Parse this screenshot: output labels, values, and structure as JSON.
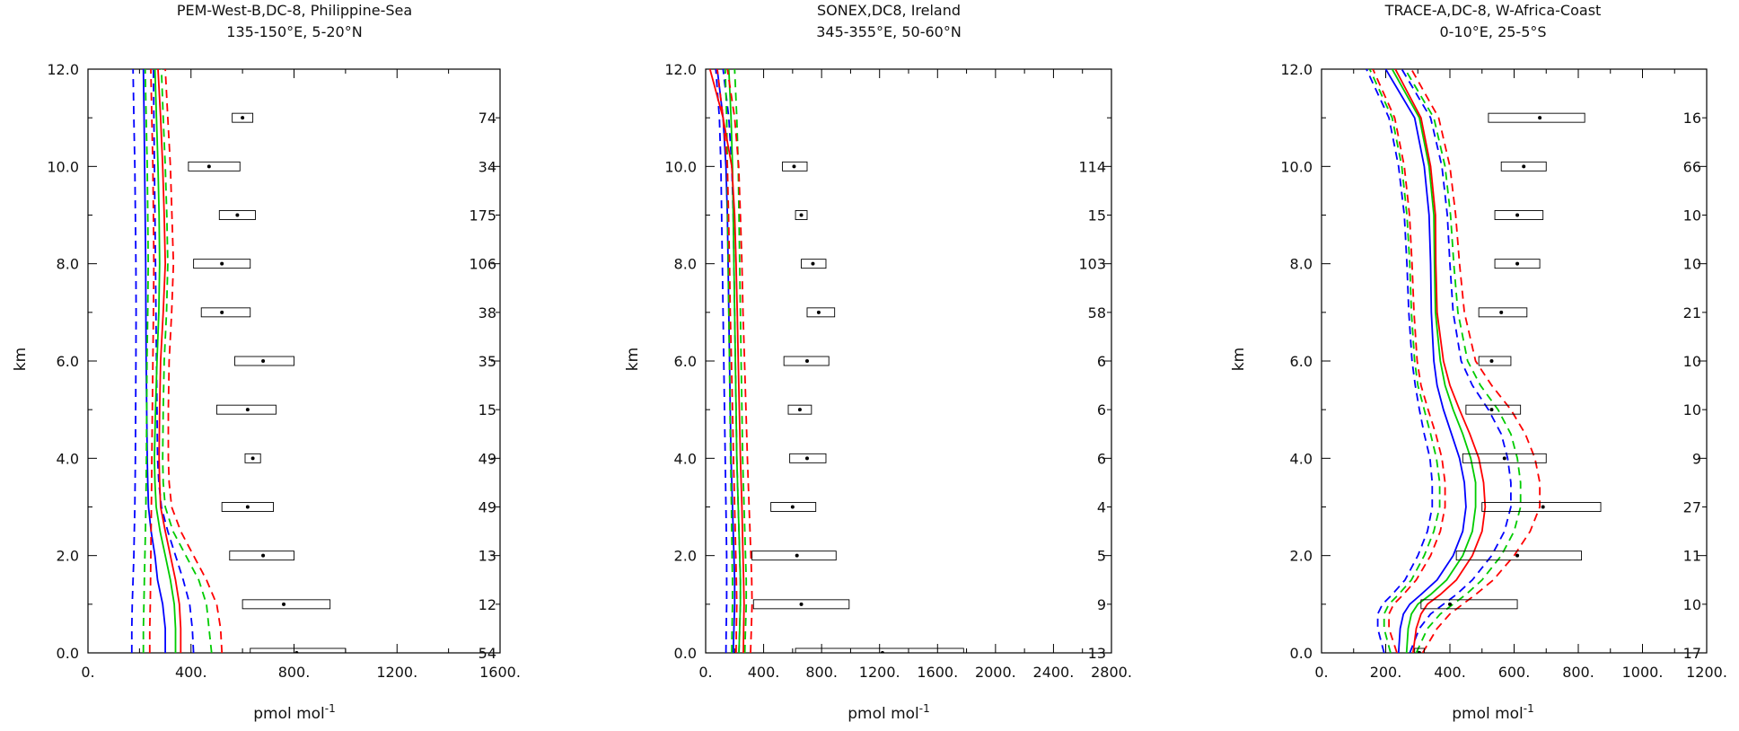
{
  "chart_data": [
    {
      "type": "line",
      "title": "PEM-West-B,DC-8, Philippine-Sea",
      "subtitle": "135-150°E, 5-20°N",
      "xlabel": "pmol mol",
      "xlabel_exp": "-1",
      "ylabel": "km",
      "xlim": [
        0,
        1600
      ],
      "ylim": [
        0,
        12
      ],
      "xticks": [
        0,
        400,
        800,
        1200,
        1600
      ],
      "xtick_labels": [
        "0.",
        "400.",
        "800.",
        "1200.",
        "1600."
      ],
      "yticks": [
        0,
        2,
        4,
        6,
        8,
        10,
        12
      ],
      "ytick_labels": [
        "0.0",
        "2.0",
        "4.0",
        "6.0",
        "8.0",
        "10.0",
        "12.0"
      ],
      "y": [
        0,
        0.5,
        1,
        1.5,
        2,
        2.5,
        3,
        3.5,
        4,
        5,
        6,
        7,
        8,
        9,
        10,
        11,
        12
      ],
      "series": [
        {
          "color": "#0000ff",
          "dash": false,
          "values": [
            300,
            300,
            290,
            270,
            260,
            245,
            235,
            232,
            230,
            228,
            226,
            225,
            224,
            222,
            220,
            218,
            215
          ]
        },
        {
          "color": "#0000ff",
          "dash": true,
          "values": [
            170,
            170,
            172,
            175,
            178,
            180,
            182,
            183,
            184,
            185,
            186,
            187,
            186,
            184,
            182,
            178,
            175
          ]
        },
        {
          "color": "#0000ff",
          "dash": true,
          "values": [
            410,
            405,
            395,
            370,
            340,
            310,
            285,
            275,
            270,
            268,
            266,
            264,
            262,
            260,
            258,
            256,
            254
          ]
        },
        {
          "color": "#00cc00",
          "dash": false,
          "values": [
            340,
            340,
            335,
            320,
            300,
            280,
            265,
            260,
            258,
            262,
            268,
            275,
            278,
            276,
            272,
            266,
            260
          ]
        },
        {
          "color": "#00cc00",
          "dash": true,
          "values": [
            215,
            215,
            217,
            219,
            221,
            223,
            225,
            226,
            227,
            228,
            229,
            232,
            234,
            232,
            230,
            226,
            222
          ]
        },
        {
          "color": "#00cc00",
          "dash": true,
          "values": [
            480,
            470,
            460,
            430,
            380,
            330,
            300,
            292,
            290,
            292,
            296,
            305,
            310,
            306,
            300,
            292,
            285
          ]
        },
        {
          "color": "#ff0000",
          "dash": false,
          "values": [
            360,
            360,
            355,
            340,
            320,
            300,
            282,
            278,
            276,
            278,
            282,
            292,
            300,
            296,
            290,
            282,
            272
          ]
        },
        {
          "color": "#ff0000",
          "dash": true,
          "values": [
            240,
            240,
            242,
            243,
            244,
            245,
            246,
            247,
            248,
            250,
            252,
            254,
            256,
            254,
            252,
            248,
            244
          ]
        },
        {
          "color": "#ff0000",
          "dash": true,
          "values": [
            520,
            515,
            500,
            460,
            410,
            360,
            325,
            315,
            312,
            312,
            315,
            325,
            332,
            326,
            320,
            310,
            300
          ]
        }
      ],
      "boxes": [
        {
          "alt": 11,
          "min": 560,
          "max": 640,
          "median": 600,
          "count": "74"
        },
        {
          "alt": 10,
          "min": 390,
          "max": 590,
          "median": 470,
          "count": "34"
        },
        {
          "alt": 9,
          "min": 510,
          "max": 650,
          "median": 580,
          "count": "175"
        },
        {
          "alt": 8,
          "min": 410,
          "max": 630,
          "median": 520,
          "count": "106"
        },
        {
          "alt": 7,
          "min": 440,
          "max": 630,
          "median": 520,
          "count": "38"
        },
        {
          "alt": 6,
          "min": 570,
          "max": 800,
          "median": 680,
          "count": "35"
        },
        {
          "alt": 5,
          "min": 500,
          "max": 730,
          "median": 620,
          "count": "15"
        },
        {
          "alt": 4,
          "min": 610,
          "max": 670,
          "median": 640,
          "count": "49"
        },
        {
          "alt": 3,
          "min": 520,
          "max": 720,
          "median": 620,
          "count": "49"
        },
        {
          "alt": 2,
          "min": 550,
          "max": 800,
          "median": 680,
          "count": "13"
        },
        {
          "alt": 1,
          "min": 600,
          "max": 940,
          "median": 760,
          "count": "12"
        },
        {
          "alt": 0,
          "min": 630,
          "max": 1000,
          "median": 810,
          "count": "54"
        }
      ]
    },
    {
      "type": "line",
      "title": "SONEX,DC8, Ireland",
      "subtitle": "345-355°E, 50-60°N",
      "xlabel": "pmol mol",
      "xlabel_exp": "-1",
      "ylabel": "km",
      "xlim": [
        0,
        2800
      ],
      "ylim": [
        0,
        12
      ],
      "xticks": [
        0,
        400,
        800,
        1200,
        1600,
        2000,
        2400,
        2800
      ],
      "xtick_labels": [
        "0.",
        "400.",
        "800.",
        "1200.",
        "1600.",
        "2000.",
        "2400.",
        "2800."
      ],
      "yticks": [
        0,
        2,
        4,
        6,
        8,
        10,
        12
      ],
      "ytick_labels": [
        "0.0",
        "2.0",
        "4.0",
        "6.0",
        "8.0",
        "10.0",
        "12.0"
      ],
      "y": [
        0,
        0.5,
        1,
        1.5,
        2,
        3,
        4,
        5,
        6,
        7,
        8,
        9,
        10,
        11,
        12
      ],
      "series": [
        {
          "color": "#0000ff",
          "dash": false,
          "values": [
            190,
            195,
            200,
            200,
            195,
            185,
            175,
            170,
            165,
            160,
            155,
            150,
            140,
            120,
            80
          ]
        },
        {
          "color": "#0000ff",
          "dash": true,
          "values": [
            140,
            142,
            145,
            145,
            145,
            140,
            135,
            130,
            125,
            120,
            115,
            110,
            105,
            95,
            70
          ]
        },
        {
          "color": "#0000ff",
          "dash": true,
          "values": [
            230,
            235,
            240,
            240,
            235,
            225,
            215,
            210,
            205,
            200,
            195,
            190,
            180,
            160,
            120
          ]
        },
        {
          "color": "#00cc00",
          "dash": false,
          "values": [
            230,
            235,
            240,
            240,
            235,
            225,
            215,
            210,
            205,
            200,
            195,
            190,
            185,
            175,
            160
          ]
        },
        {
          "color": "#00cc00",
          "dash": true,
          "values": [
            180,
            182,
            185,
            185,
            182,
            178,
            172,
            168,
            164,
            160,
            156,
            152,
            150,
            145,
            135
          ]
        },
        {
          "color": "#00cc00",
          "dash": true,
          "values": [
            270,
            275,
            280,
            280,
            275,
            265,
            255,
            250,
            245,
            240,
            235,
            230,
            225,
            215,
            200
          ]
        },
        {
          "color": "#ff0000",
          "dash": false,
          "values": [
            260,
            262,
            265,
            262,
            258,
            250,
            240,
            232,
            225,
            218,
            210,
            200,
            180,
            120,
            30
          ]
        },
        {
          "color": "#ff0000",
          "dash": true,
          "values": [
            210,
            212,
            215,
            212,
            208,
            200,
            192,
            185,
            178,
            170,
            165,
            158,
            150,
            120,
            80
          ]
        },
        {
          "color": "#ff0000",
          "dash": true,
          "values": [
            310,
            315,
            320,
            318,
            312,
            300,
            288,
            278,
            268,
            258,
            250,
            240,
            228,
            200,
            150
          ]
        }
      ],
      "boxes": [
        {
          "alt": 10,
          "min": 530,
          "max": 700,
          "median": 610,
          "count": "114"
        },
        {
          "alt": 9,
          "min": 620,
          "max": 700,
          "median": 660,
          "count": "15"
        },
        {
          "alt": 8,
          "min": 660,
          "max": 830,
          "median": 740,
          "count": "103"
        },
        {
          "alt": 7,
          "min": 700,
          "max": 890,
          "median": 780,
          "count": "58"
        },
        {
          "alt": 6,
          "min": 540,
          "max": 850,
          "median": 700,
          "count": "6"
        },
        {
          "alt": 5,
          "min": 570,
          "max": 730,
          "median": 650,
          "count": "6"
        },
        {
          "alt": 4,
          "min": 580,
          "max": 830,
          "median": 700,
          "count": "6"
        },
        {
          "alt": 3,
          "min": 450,
          "max": 760,
          "median": 600,
          "count": "4"
        },
        {
          "alt": 2,
          "min": 320,
          "max": 900,
          "median": 630,
          "count": "5"
        },
        {
          "alt": 1,
          "min": 330,
          "max": 990,
          "median": 660,
          "count": "9"
        },
        {
          "alt": 0,
          "min": 620,
          "max": 1780,
          "median": 1220,
          "count": "13"
        }
      ]
    },
    {
      "type": "line",
      "title": "TRACE-A,DC-8, W-Africa-Coast",
      "subtitle": "0-10°E, 25-5°S",
      "xlabel": "pmol mol",
      "xlabel_exp": "-1",
      "ylabel": "km",
      "xlim": [
        0,
        1200
      ],
      "ylim": [
        0,
        12
      ],
      "xticks": [
        0,
        200,
        400,
        600,
        800,
        1000,
        1200
      ],
      "xtick_labels": [
        "0.",
        "200.",
        "400.",
        "600.",
        "800.",
        "1000.",
        "1200."
      ],
      "yticks": [
        0,
        2,
        4,
        6,
        8,
        10,
        12
      ],
      "ytick_labels": [
        "0.0",
        "2.0",
        "4.0",
        "6.0",
        "8.0",
        "10.0",
        "12.0"
      ],
      "y": [
        0,
        0.5,
        0.8,
        1,
        1.2,
        1.5,
        2,
        2.5,
        3,
        3.5,
        4,
        4.5,
        5,
        5.5,
        6,
        7,
        8,
        9,
        10,
        11,
        12
      ],
      "series": [
        {
          "color": "#0000ff",
          "dash": false,
          "values": [
            240,
            245,
            255,
            275,
            310,
            360,
            410,
            440,
            450,
            445,
            430,
            405,
            380,
            360,
            350,
            342,
            340,
            335,
            320,
            290,
            200
          ]
        },
        {
          "color": "#0000ff",
          "dash": true,
          "values": [
            195,
            175,
            175,
            190,
            220,
            260,
            300,
            330,
            345,
            345,
            338,
            320,
            305,
            292,
            282,
            272,
            266,
            258,
            240,
            210,
            140
          ]
        },
        {
          "color": "#0000ff",
          "dash": true,
          "values": [
            275,
            305,
            340,
            380,
            420,
            470,
            530,
            570,
            590,
            590,
            580,
            560,
            520,
            470,
            435,
            410,
            400,
            392,
            375,
            340,
            250
          ]
        },
        {
          "color": "#00cc00",
          "dash": false,
          "values": [
            265,
            270,
            280,
            300,
            340,
            390,
            440,
            470,
            480,
            480,
            465,
            440,
            410,
            385,
            370,
            355,
            352,
            350,
            335,
            305,
            220
          ]
        },
        {
          "color": "#00cc00",
          "dash": true,
          "values": [
            215,
            195,
            195,
            210,
            240,
            280,
            320,
            350,
            368,
            368,
            358,
            340,
            320,
            300,
            290,
            280,
            275,
            266,
            250,
            220,
            150
          ]
        },
        {
          "color": "#00cc00",
          "dash": true,
          "values": [
            295,
            330,
            370,
            410,
            450,
            500,
            560,
            600,
            620,
            620,
            610,
            590,
            550,
            495,
            455,
            425,
            412,
            402,
            385,
            350,
            260
          ]
        },
        {
          "color": "#ff0000",
          "dash": false,
          "values": [
            285,
            295,
            310,
            330,
            370,
            420,
            470,
            500,
            510,
            505,
            490,
            462,
            430,
            400,
            380,
            360,
            356,
            355,
            340,
            310,
            230
          ]
        },
        {
          "color": "#ff0000",
          "dash": true,
          "values": [
            235,
            210,
            210,
            225,
            255,
            295,
            340,
            370,
            385,
            385,
            375,
            356,
            332,
            310,
            298,
            288,
            282,
            274,
            258,
            228,
            160
          ]
        },
        {
          "color": "#ff0000",
          "dash": true,
          "values": [
            315,
            360,
            400,
            440,
            480,
            535,
            600,
            650,
            680,
            680,
            665,
            635,
            590,
            530,
            480,
            445,
            430,
            418,
            400,
            365,
            280
          ]
        }
      ],
      "boxes": [
        {
          "alt": 11,
          "min": 520,
          "max": 820,
          "median": 680,
          "count": "16"
        },
        {
          "alt": 10,
          "min": 560,
          "max": 700,
          "median": 630,
          "count": "66"
        },
        {
          "alt": 9,
          "min": 540,
          "max": 690,
          "median": 610,
          "count": "10"
        },
        {
          "alt": 8,
          "min": 540,
          "max": 680,
          "median": 610,
          "count": "10"
        },
        {
          "alt": 7,
          "min": 490,
          "max": 640,
          "median": 560,
          "count": "21"
        },
        {
          "alt": 6,
          "min": 490,
          "max": 590,
          "median": 530,
          "count": "10"
        },
        {
          "alt": 5,
          "min": 450,
          "max": 620,
          "median": 530,
          "count": "10"
        },
        {
          "alt": 4,
          "min": 440,
          "max": 700,
          "median": 570,
          "count": "9"
        },
        {
          "alt": 3,
          "min": 500,
          "max": 870,
          "median": 690,
          "count": "27"
        },
        {
          "alt": 2,
          "min": 420,
          "max": 810,
          "median": 610,
          "count": "11"
        },
        {
          "alt": 1,
          "min": 310,
          "max": 610,
          "median": 400,
          "count": "10"
        },
        {
          "alt": 0,
          "min": 290,
          "max": 320,
          "median": 305,
          "count": "17"
        }
      ]
    }
  ]
}
